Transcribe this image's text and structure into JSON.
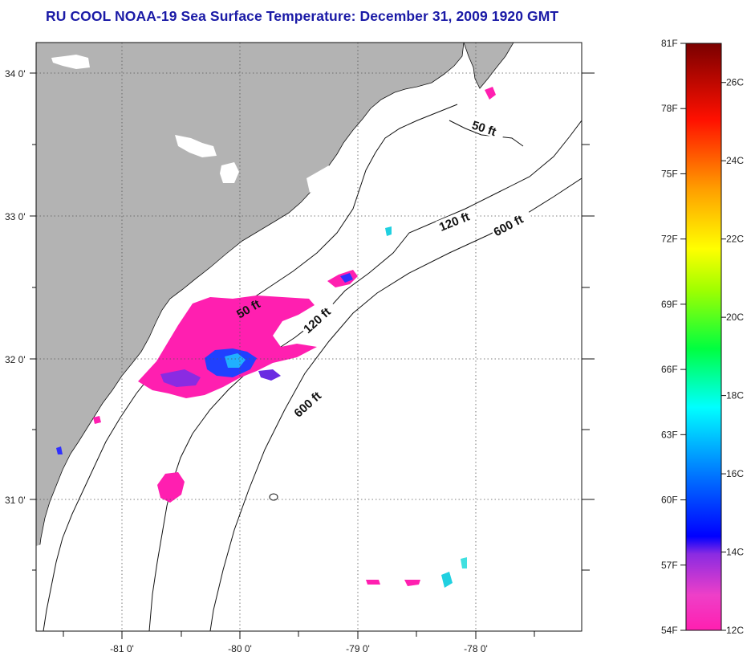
{
  "title": "RU COOL  NOAA-19  Sea Surface Temperature:  December 31, 2009 1920 GMT",
  "map": {
    "lon_ticks": [
      {
        "lon": -81,
        "label": "-81 0'"
      },
      {
        "lon": -80,
        "label": "-80 0'"
      },
      {
        "lon": -79,
        "label": "-79 0'"
      },
      {
        "lon": -78,
        "label": "-78 0'"
      }
    ],
    "lat_ticks": [
      {
        "lat": 34,
        "label": "34 0'"
      },
      {
        "lat": 33,
        "label": "33 0'"
      },
      {
        "lat": 32,
        "label": "32 0'"
      },
      {
        "lat": 31,
        "label": "31 0'"
      }
    ],
    "contours": [
      {
        "label": "50 ft"
      },
      {
        "label": "120 ft"
      },
      {
        "label": "600 ft"
      },
      {
        "label": "50 ft"
      },
      {
        "label": "120 ft"
      },
      {
        "label": "600 ft"
      }
    ],
    "colors": {
      "land": "#b3b3b3",
      "ocean": "#ffffff",
      "grid": "#666666"
    }
  },
  "colorbar": {
    "fahrenheit": [
      "81F",
      "78F",
      "75F",
      "72F",
      "69F",
      "66F",
      "63F",
      "60F",
      "57F",
      "54F"
    ],
    "celsius": [
      "26C",
      "24C",
      "22C",
      "20C",
      "18C",
      "16C",
      "14C",
      "12C"
    ],
    "range_c": [
      12,
      27
    ],
    "range_f": [
      54,
      81
    ]
  }
}
